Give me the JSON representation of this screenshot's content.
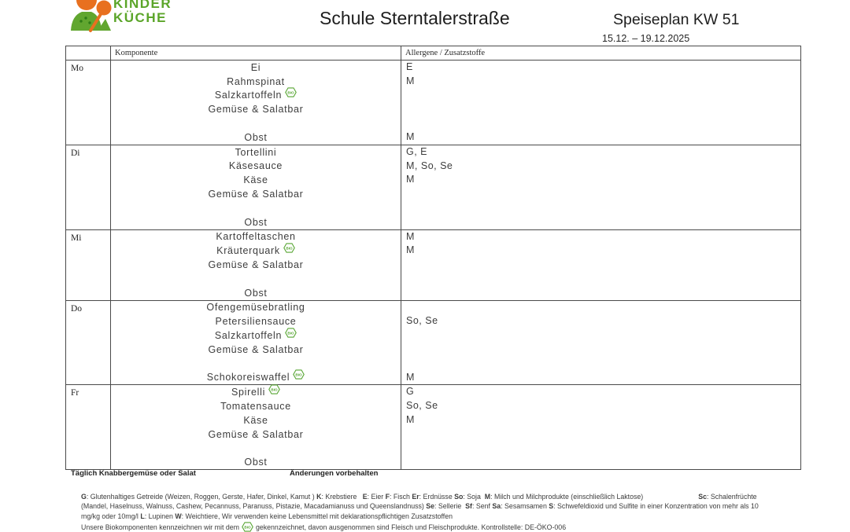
{
  "logo": {
    "name_line1": "KINDER",
    "name_line2": "KÜCHE",
    "green": "#5ba529",
    "orange": "#e8701f"
  },
  "header": {
    "school_title": "Schule Sterntalerstraße",
    "plan_title": "Speiseplan KW 51",
    "date_range": "15.12. – 19.12.2025"
  },
  "table": {
    "headers": {
      "day": "",
      "komponente": "Komponente",
      "allergene": "Allergene / Zusatzstoffe"
    },
    "bio_label": "BIO",
    "days": [
      {
        "label": "Mo",
        "lines": [
          {
            "item": "Ei",
            "bio": false,
            "allergens": "E"
          },
          {
            "item": "Rahmspinat",
            "bio": false,
            "allergens": "M"
          },
          {
            "item": "Salzkartoffeln",
            "bio": true,
            "allergens": ""
          },
          {
            "item": "Gemüse & Salatbar",
            "bio": false,
            "allergens": ""
          },
          {
            "item": "",
            "bio": false,
            "allergens": ""
          },
          {
            "item": "Obst",
            "bio": false,
            "allergens": "M"
          }
        ]
      },
      {
        "label": "Di",
        "lines": [
          {
            "item": "Tortellini",
            "bio": false,
            "allergens": "G, E"
          },
          {
            "item": "Käsesauce",
            "bio": false,
            "allergens": "M, So, Se"
          },
          {
            "item": "Käse",
            "bio": false,
            "allergens": "M"
          },
          {
            "item": "Gemüse & Salatbar",
            "bio": false,
            "allergens": ""
          },
          {
            "item": "",
            "bio": false,
            "allergens": ""
          },
          {
            "item": "Obst",
            "bio": false,
            "allergens": ""
          }
        ]
      },
      {
        "label": "Mi",
        "lines": [
          {
            "item": "Kartoffeltaschen",
            "bio": false,
            "allergens": "M"
          },
          {
            "item": "Kräuterquark",
            "bio": true,
            "allergens": "M"
          },
          {
            "item": "Gemüse & Salatbar",
            "bio": false,
            "allergens": ""
          },
          {
            "item": "",
            "bio": false,
            "allergens": ""
          },
          {
            "item": "Obst",
            "bio": false,
            "allergens": ""
          }
        ]
      },
      {
        "label": "Do",
        "lines": [
          {
            "item": "Ofengemüsebratling",
            "bio": false,
            "allergens": ""
          },
          {
            "item": "Petersiliensauce",
            "bio": false,
            "allergens": "So, Se"
          },
          {
            "item": "Salzkartoffeln",
            "bio": true,
            "allergens": ""
          },
          {
            "item": "Gemüse & Salatbar",
            "bio": false,
            "allergens": ""
          },
          {
            "item": "",
            "bio": false,
            "allergens": ""
          },
          {
            "item": "Schokoreiswaffel",
            "bio": true,
            "allergens": "M"
          }
        ]
      },
      {
        "label": "Fr",
        "lines": [
          {
            "item": "Spirelli",
            "bio": true,
            "allergens": "G"
          },
          {
            "item": "Tomatensauce",
            "bio": false,
            "allergens": "So, Se"
          },
          {
            "item": "Käse",
            "bio": false,
            "allergens": "M"
          },
          {
            "item": "Gemüse & Salatbar",
            "bio": false,
            "allergens": ""
          },
          {
            "item": "",
            "bio": false,
            "allergens": ""
          },
          {
            "item": "Obst",
            "bio": false,
            "allergens": ""
          }
        ]
      }
    ]
  },
  "notes": {
    "daily_note": "Täglich Knabbergemüse oder Salat",
    "changes_note": "Änderungen vorbehalten"
  },
  "legend": {
    "lines": [
      [
        {
          "b": "G",
          "t": ": Glutenhaltiges Getreide (Weizen, Roggen, Gerste, Hafer, Dinkel, Kamut ) "
        },
        {
          "b": "K",
          "t": ": Krebstiere   "
        },
        {
          "b": "E",
          "t": ": Eier "
        },
        {
          "b": "F",
          "t": ": Fisch "
        },
        {
          "b": "Er",
          "t": ": Erdnüsse "
        },
        {
          "b": "So",
          "t": ": Soja  "
        },
        {
          "b": "M",
          "t": ": Milch und Milchprodukte (einschließlich Laktose)"
        },
        {
          "b": "Sc",
          "t": ": Schalenfrüchte",
          "gap": true
        }
      ],
      [
        {
          "b": "",
          "t": "(Mandel, Haselnuss, Walnuss, Cashew, Pecannuss, Paranuss, Pistazie, Macadamianuss und Queenslandnuss) "
        },
        {
          "b": "Se",
          "t": ": Sellerie  "
        },
        {
          "b": "Sf",
          "t": ": Senf "
        },
        {
          "b": "Sa",
          "t": ": Sesamsamen "
        },
        {
          "b": "S",
          "t": ": Schwefeldioxid und Sulfite in einer Konzentration von mehr als 10"
        }
      ],
      [
        {
          "b": "",
          "t": "mg/kg oder 10mg/l "
        },
        {
          "b": "L",
          "t": ": Lupinen "
        },
        {
          "b": "W",
          "t": ": Weichtiere, Wir verwenden keine Lebensmittel mit deklarationspflichtigen Zusatzstoffen"
        }
      ]
    ],
    "bio_note": {
      "prefix": "Unsere Biokomponenten kennzeichnen wir mit dem",
      "suffix": "gekennzeichnet, davon ausgenommen sind Fleisch und Fleischprodukte. Kontrollstelle: DE-ÖKO-006"
    }
  }
}
